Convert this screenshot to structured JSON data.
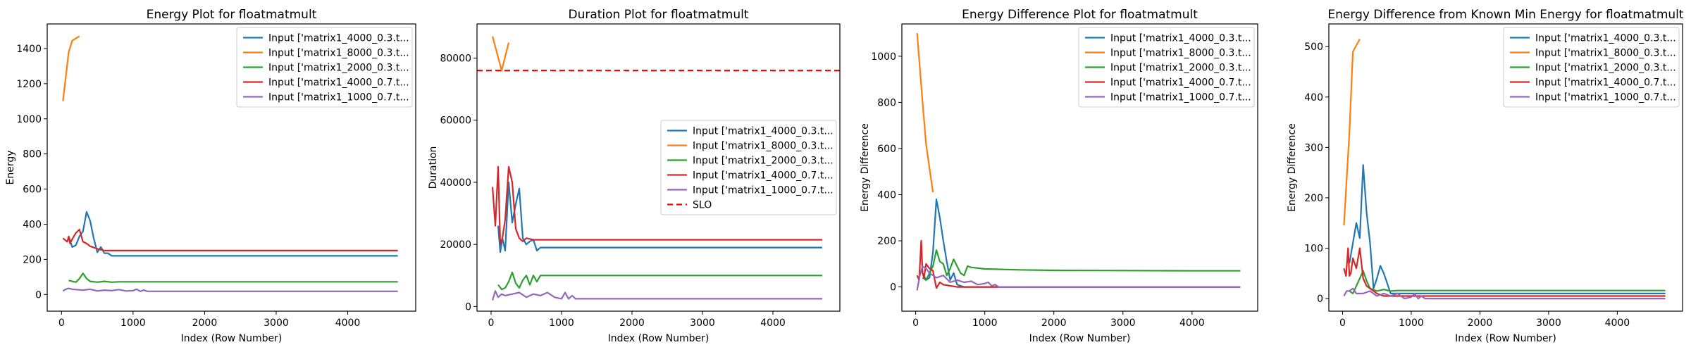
{
  "chart_data": [
    {
      "type": "line",
      "title": "Energy Plot for floatmatmult",
      "xlabel": "Index (Row Number)",
      "ylabel": "Energy",
      "xlim": [
        -200,
        4950
      ],
      "ylim": [
        -95,
        1540
      ],
      "xticks": [
        0,
        1000,
        2000,
        3000,
        4000
      ],
      "yticks": [
        0,
        200,
        400,
        600,
        800,
        1000,
        1200,
        1400
      ],
      "grid": false,
      "legend": "top-right",
      "series": [
        {
          "name": "Input ['matrix1_4000_0.3.t...",
          "color": "#1f77b4",
          "x": [
            100,
            150,
            200,
            250,
            300,
            350,
            400,
            450,
            500,
            550,
            600,
            650,
            700,
            800,
            1000,
            1500,
            2000,
            3000,
            4000,
            4700
          ],
          "y": [
            330,
            270,
            280,
            330,
            360,
            470,
            420,
            320,
            240,
            270,
            235,
            235,
            220,
            220,
            220,
            220,
            220,
            220,
            220,
            220
          ]
        },
        {
          "name": "Input ['matrix1_8000_0.3.t...",
          "color": "#ff7f0e",
          "x": [
            20,
            100,
            150,
            250
          ],
          "y": [
            1100,
            1380,
            1445,
            1470
          ]
        },
        {
          "name": "Input ['matrix1_2000_0.3.t...",
          "color": "#2ca02c",
          "x": [
            100,
            150,
            200,
            250,
            300,
            350,
            400,
            500,
            600,
            700,
            800,
            1000,
            1500,
            2000,
            3000,
            4000,
            4700
          ],
          "y": [
            80,
            75,
            70,
            90,
            120,
            90,
            75,
            70,
            75,
            70,
            72,
            72,
            72,
            72,
            72,
            72,
            72
          ]
        },
        {
          "name": "Input ['matrix1_4000_0.7.t...",
          "color": "#d62728",
          "x": [
            20,
            50,
            80,
            100,
            120,
            150,
            200,
            250,
            300,
            350,
            400,
            500,
            600,
            700,
            1000,
            2000,
            3000,
            4000,
            4700
          ],
          "y": [
            320,
            310,
            300,
            330,
            290,
            315,
            350,
            370,
            300,
            290,
            275,
            260,
            250,
            250,
            250,
            250,
            250,
            250,
            250
          ]
        },
        {
          "name": "Input ['matrix1_1000_0.7.t...",
          "color": "#9467bd",
          "x": [
            20,
            60,
            100,
            150,
            200,
            300,
            400,
            500,
            600,
            700,
            800,
            900,
            1000,
            1050,
            1100,
            1150,
            1200,
            1500,
            2000,
            3000,
            4000,
            4700
          ],
          "y": [
            20,
            30,
            35,
            30,
            28,
            25,
            30,
            20,
            25,
            22,
            28,
            20,
            22,
            30,
            18,
            25,
            18,
            18,
            18,
            18,
            18,
            18
          ]
        }
      ]
    },
    {
      "type": "line",
      "title": "Duration Plot for floatmatmult",
      "xlabel": "Index (Row Number)",
      "ylabel": "Duration",
      "xlim": [
        -200,
        4950
      ],
      "ylim": [
        -1500,
        91000
      ],
      "xticks": [
        0,
        1000,
        2000,
        3000,
        4000
      ],
      "yticks": [
        0,
        20000,
        40000,
        60000,
        80000
      ],
      "grid": false,
      "legend": "center-right",
      "hlines": [
        {
          "name": "SLO",
          "value": 76000,
          "color": "#ff0000",
          "style": "dashed"
        }
      ],
      "series": [
        {
          "name": "Input ['matrix1_4000_0.3.t...",
          "color": "#1f77b4",
          "x": [
            100,
            130,
            160,
            200,
            250,
            300,
            350,
            400,
            450,
            500,
            550,
            600,
            650,
            700,
            800,
            1000,
            1500,
            2000,
            3000,
            4000,
            4700
          ],
          "y": [
            26000,
            17500,
            22000,
            18000,
            40000,
            27000,
            33000,
            38000,
            22000,
            20000,
            21000,
            21500,
            18000,
            19000,
            19000,
            19000,
            19000,
            19000,
            19000,
            19000,
            19000
          ]
        },
        {
          "name": "Input ['matrix1_8000_0.3.t...",
          "color": "#ff7f0e",
          "x": [
            20,
            150,
            250
          ],
          "y": [
            87000,
            76000,
            85000
          ]
        },
        {
          "name": "Input ['matrix1_2000_0.3.t...",
          "color": "#2ca02c",
          "x": [
            100,
            150,
            200,
            250,
            300,
            350,
            400,
            450,
            500,
            550,
            600,
            650,
            700,
            800,
            1000,
            1500,
            2000,
            3000,
            4000,
            4700
          ],
          "y": [
            7000,
            5500,
            6000,
            8000,
            11000,
            7500,
            6000,
            8500,
            10000,
            7000,
            10000,
            8000,
            10000,
            10000,
            10000,
            10000,
            10000,
            10000,
            10000,
            10000
          ]
        },
        {
          "name": "Input ['matrix1_4000_0.7.t...",
          "color": "#d62728",
          "x": [
            20,
            60,
            100,
            130,
            160,
            200,
            250,
            300,
            350,
            400,
            450,
            500,
            600,
            700,
            1000,
            2000,
            3000,
            4000,
            4700
          ],
          "y": [
            38500,
            26000,
            45000,
            20000,
            22000,
            28000,
            45000,
            40000,
            25000,
            22000,
            21000,
            22000,
            21500,
            21500,
            21500,
            21500,
            21500,
            21500,
            21500
          ]
        },
        {
          "name": "Input ['matrix1_1000_0.7.t...",
          "color": "#9467bd",
          "x": [
            20,
            60,
            100,
            150,
            200,
            300,
            400,
            500,
            600,
            700,
            800,
            900,
            1000,
            1050,
            1100,
            1150,
            1200,
            1500,
            2000,
            3000,
            4000,
            4700
          ],
          "y": [
            2000,
            5000,
            3000,
            4000,
            3500,
            4000,
            4500,
            3000,
            4000,
            3500,
            4500,
            3000,
            2500,
            4500,
            2500,
            3500,
            2500,
            2500,
            2500,
            2500,
            2500,
            2500
          ]
        }
      ]
    },
    {
      "type": "line",
      "title": "Energy Difference Plot for floatmatmult",
      "xlabel": "Index (Row Number)",
      "ylabel": "Energy Difference",
      "xlim": [
        -200,
        4950
      ],
      "ylim": [
        -105,
        1140
      ],
      "xticks": [
        0,
        1000,
        2000,
        3000,
        4000
      ],
      "yticks": [
        0,
        200,
        400,
        600,
        800,
        1000
      ],
      "grid": false,
      "legend": "top-right",
      "series": [
        {
          "name": "Input ['matrix1_4000_0.3.t...",
          "color": "#1f77b4",
          "x": [
            100,
            150,
            200,
            250,
            300,
            350,
            400,
            450,
            500,
            550,
            600,
            650,
            700,
            800,
            1000,
            1500,
            2000,
            3000,
            4000,
            4700
          ],
          "y": [
            60,
            30,
            40,
            150,
            380,
            300,
            200,
            110,
            30,
            60,
            10,
            5,
            0,
            0,
            0,
            0,
            0,
            0,
            0,
            0
          ]
        },
        {
          "name": "Input ['matrix1_8000_0.3.t...",
          "color": "#ff7f0e",
          "x": [
            20,
            100,
            150,
            250
          ],
          "y": [
            1100,
            800,
            620,
            410
          ]
        },
        {
          "name": "Input ['matrix1_2000_0.3.t...",
          "color": "#2ca02c",
          "x": [
            100,
            150,
            200,
            250,
            300,
            350,
            400,
            450,
            500,
            550,
            600,
            650,
            700,
            750,
            800,
            1000,
            1500,
            2000,
            3000,
            4000,
            4700
          ],
          "y": [
            40,
            30,
            60,
            90,
            160,
            110,
            100,
            50,
            80,
            120,
            90,
            60,
            50,
            90,
            85,
            78,
            74,
            72,
            71,
            70,
            70
          ]
        },
        {
          "name": "Input ['matrix1_4000_0.7.t...",
          "color": "#d62728",
          "x": [
            20,
            50,
            80,
            100,
            120,
            150,
            200,
            250,
            300,
            350,
            400,
            500,
            600,
            700,
            1000,
            2000,
            3000,
            4000,
            4700
          ],
          "y": [
            50,
            30,
            200,
            60,
            40,
            100,
            80,
            70,
            -5,
            20,
            10,
            5,
            0,
            0,
            0,
            0,
            0,
            0,
            0
          ]
        },
        {
          "name": "Input ['matrix1_1000_0.7.t...",
          "color": "#9467bd",
          "x": [
            20,
            60,
            100,
            150,
            200,
            300,
            400,
            500,
            600,
            700,
            800,
            900,
            1000,
            1050,
            1100,
            1150,
            1200,
            1500,
            2000,
            3000,
            4000,
            4700
          ],
          "y": [
            -15,
            50,
            90,
            80,
            60,
            40,
            50,
            20,
            30,
            20,
            25,
            10,
            15,
            20,
            5,
            10,
            0,
            0,
            0,
            0,
            0,
            0
          ]
        }
      ]
    },
    {
      "type": "line",
      "title": "Energy Difference from Known Min Energy for floatmatmult",
      "xlabel": "Index (Row Number)",
      "ylabel": "Energy Difference",
      "xlim": [
        -200,
        4950
      ],
      "ylim": [
        -25,
        545
      ],
      "xticks": [
        0,
        1000,
        2000,
        3000,
        4000
      ],
      "yticks": [
        0,
        100,
        200,
        300,
        400,
        500
      ],
      "grid": false,
      "legend": "top-right",
      "series": [
        {
          "name": "Input ['matrix1_4000_0.3.t...",
          "color": "#1f77b4",
          "x": [
            100,
            150,
            200,
            250,
            300,
            350,
            400,
            450,
            500,
            550,
            600,
            650,
            700,
            800,
            1000,
            1500,
            2000,
            3000,
            4000,
            4700
          ],
          "y": [
            70,
            110,
            150,
            120,
            265,
            170,
            110,
            20,
            40,
            65,
            50,
            30,
            10,
            10,
            10,
            10,
            10,
            10,
            10,
            10
          ]
        },
        {
          "name": "Input ['matrix1_8000_0.3.t...",
          "color": "#ff7f0e",
          "x": [
            20,
            100,
            150,
            250
          ],
          "y": [
            145,
            330,
            490,
            515
          ]
        },
        {
          "name": "Input ['matrix1_2000_0.3.t...",
          "color": "#2ca02c",
          "x": [
            100,
            150,
            200,
            250,
            300,
            350,
            400,
            500,
            600,
            700,
            800,
            1000,
            1500,
            2000,
            3000,
            4000,
            4700
          ],
          "y": [
            15,
            10,
            25,
            40,
            55,
            35,
            20,
            15,
            18,
            15,
            16,
            16,
            16,
            16,
            16,
            16,
            16
          ]
        },
        {
          "name": "Input ['matrix1_4000_0.7.t...",
          "color": "#d62728",
          "x": [
            20,
            50,
            80,
            100,
            120,
            150,
            200,
            250,
            300,
            350,
            400,
            500,
            600,
            700,
            1000,
            2000,
            3000,
            4000,
            4700
          ],
          "y": [
            60,
            45,
            100,
            45,
            50,
            80,
            60,
            100,
            40,
            25,
            20,
            10,
            5,
            5,
            5,
            5,
            5,
            5,
            5
          ]
        },
        {
          "name": "Input ['matrix1_1000_0.7.t...",
          "color": "#9467bd",
          "x": [
            20,
            60,
            100,
            150,
            200,
            300,
            400,
            500,
            600,
            700,
            800,
            900,
            1000,
            1050,
            1100,
            1150,
            1200,
            1500,
            2000,
            3000,
            4000,
            4700
          ],
          "y": [
            5,
            15,
            15,
            20,
            10,
            10,
            15,
            5,
            10,
            5,
            10,
            0,
            3,
            10,
            0,
            5,
            0,
            0,
            0,
            0,
            0,
            0
          ]
        }
      ]
    }
  ]
}
